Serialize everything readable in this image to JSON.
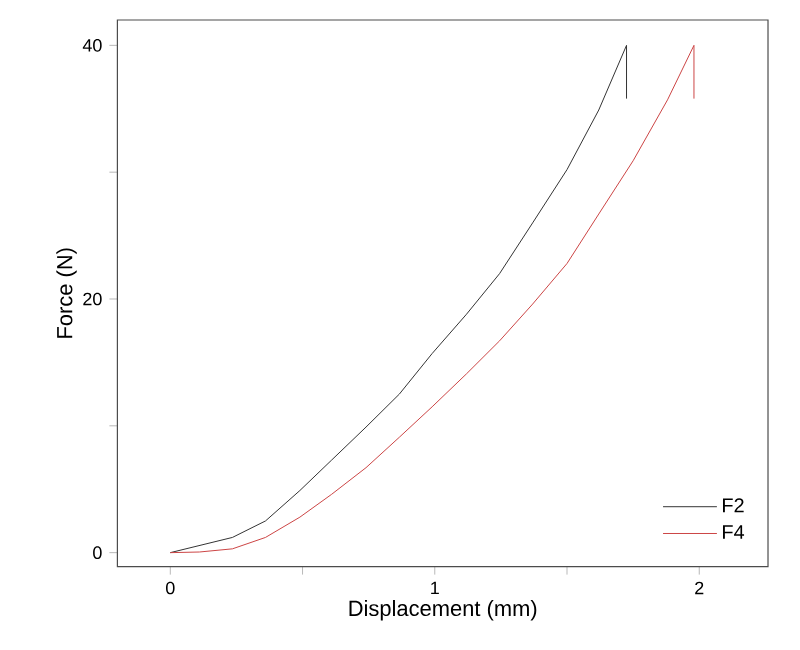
{
  "chart_data": {
    "type": "line",
    "xlabel": "Displacement (mm)",
    "ylabel": "Force (N)",
    "xlim": [
      -0.2,
      2.26
    ],
    "ylim": [
      -1.1,
      42
    ],
    "xticks": [
      0,
      {
        "value": 0.5,
        "label": null
      },
      1,
      {
        "value": 1.5,
        "label": null
      },
      2
    ],
    "yticks": [
      0,
      {
        "value": 10,
        "label": null
      },
      20,
      {
        "value": 30,
        "label": null
      },
      40
    ],
    "grid": false,
    "legend": "bottom right",
    "marker": "none",
    "line_style": "solid",
    "series": [
      {
        "name": "F2",
        "color": "#333333",
        "x": [
          0,
          0.235,
          0.36,
          0.49,
          0.61,
          0.74,
          0.866,
          0.99,
          1.12,
          1.245,
          1.37,
          1.5,
          1.62,
          1.725,
          1.725
        ],
        "values": [
          0,
          1.2,
          2.5,
          4.9,
          7.3,
          9.9,
          12.5,
          15.7,
          18.8,
          22,
          26,
          30.2,
          34.9,
          40,
          35.8
        ]
      },
      {
        "name": "F4",
        "color": "#cc4444",
        "x": [
          0,
          0.11,
          0.235,
          0.36,
          0.49,
          0.61,
          0.74,
          0.866,
          0.99,
          1.12,
          1.245,
          1.37,
          1.5,
          1.62,
          1.75,
          1.88,
          1.98,
          1.98
        ],
        "values": [
          0,
          0.05,
          0.3,
          1.2,
          2.8,
          4.6,
          6.7,
          9.1,
          11.5,
          14.1,
          16.7,
          19.6,
          22.8,
          26.7,
          30.9,
          35.7,
          40,
          35.8
        ]
      }
    ]
  }
}
